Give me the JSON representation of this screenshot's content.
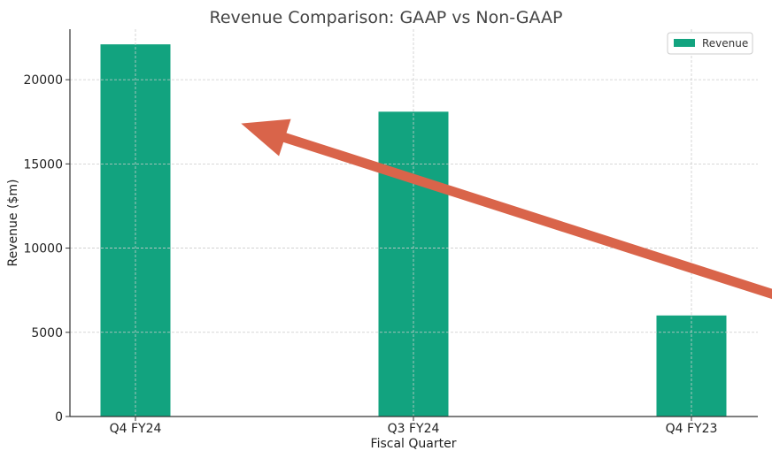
{
  "chart_data": {
    "type": "bar",
    "title": "Revenue Comparison: GAAP vs Non-GAAP",
    "xlabel": "Fiscal Quarter",
    "ylabel": "Revenue ($m)",
    "categories": [
      "Q4 FY24",
      "Q3 FY24",
      "Q4 FY23"
    ],
    "series": [
      {
        "name": "Revenue",
        "values": [
          22100,
          18100,
          6000
        ],
        "color": "#12a37f"
      }
    ],
    "ylim": [
      0,
      23000
    ],
    "yticks": [
      0,
      5000,
      10000,
      15000,
      20000
    ],
    "grid": true,
    "legend_position": "top-right",
    "annotation": {
      "type": "arrow",
      "color": "#d9644a",
      "from": {
        "category_index": 2.38,
        "y": 6800
      },
      "to": {
        "category_index": 0.38,
        "y": 17400
      }
    }
  }
}
